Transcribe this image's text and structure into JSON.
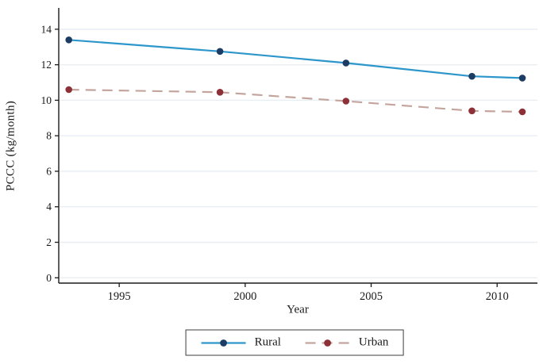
{
  "chart_data": {
    "type": "line",
    "title": "",
    "xlabel": "Year",
    "ylabel": "PCCC (kg/month)",
    "x": [
      1993,
      1999,
      2004,
      2009,
      2011
    ],
    "series": [
      {
        "name": "Rural",
        "values": [
          13.4,
          12.75,
          12.1,
          11.35,
          11.25
        ],
        "line_color": "#2d96cb",
        "marker_color": "#1c3c63",
        "style": "solid"
      },
      {
        "name": "Urban",
        "values": [
          10.6,
          10.45,
          9.95,
          9.4,
          9.35
        ],
        "line_color": "#c4a59e",
        "marker_color": "#8e3037",
        "style": "dashed"
      }
    ],
    "x_ticks": [
      1995,
      2000,
      2005,
      2010
    ],
    "y_ticks": [
      0,
      2,
      4,
      6,
      8,
      10,
      12,
      14
    ],
    "xlim": [
      1992.6,
      2011.6
    ],
    "ylim": [
      -0.3,
      15.2
    ],
    "grid": "horizontal",
    "legend_position": "bottom-center",
    "colors": {
      "background": "#ffffff",
      "grid": "#e7eef4",
      "axis": "#1a1a1a",
      "text": "#1a1a1a",
      "legend_border": "#3c3c3c"
    }
  }
}
